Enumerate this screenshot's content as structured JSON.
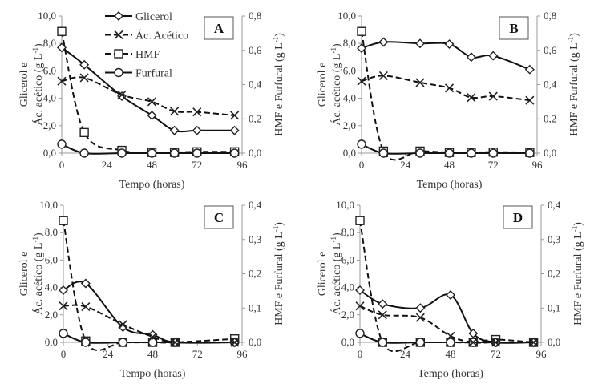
{
  "chart_data": [
    {
      "type": "line",
      "panel_label": "A",
      "xlabel": "Tempo (horas)",
      "ylabel_lines": [
        "Glicerol e",
        "Ác. acético (g L",
        "-1",
        ")"
      ],
      "y2label": [
        "HMF e Furfural (g L",
        "-1",
        ")"
      ],
      "xlim": [
        0,
        96
      ],
      "xticks": [
        "0",
        "24",
        "48",
        "72",
        "96"
      ],
      "ylim": [
        0,
        10
      ],
      "yticks": [
        "0,0",
        "2,0",
        "4,0",
        "6,0",
        "8,0",
        "10,0"
      ],
      "y2lim": [
        0,
        0.8
      ],
      "y2ticks": [
        "0,0",
        "0,2",
        "0,4",
        "0,6",
        "0,8"
      ],
      "legend": true,
      "series": [
        {
          "name": "Glicerol",
          "axis": "left",
          "marker": "diamond",
          "dash": false,
          "x": [
            0,
            12,
            32,
            48,
            60,
            72,
            92
          ],
          "y": [
            7.7,
            6.45,
            4.15,
            2.75,
            1.65,
            1.65,
            1.65
          ]
        },
        {
          "name": "Ác. Acético",
          "axis": "left",
          "marker": "x",
          "dash": true,
          "x": [
            0,
            12,
            32,
            48,
            60,
            72,
            92
          ],
          "y": [
            5.25,
            5.5,
            4.25,
            3.75,
            3.05,
            3.0,
            2.75
          ]
        },
        {
          "name": "HMF",
          "axis": "right",
          "marker": "square",
          "dash": true,
          "x": [
            0,
            12,
            32,
            48,
            60,
            72,
            92
          ],
          "y": [
            0.71,
            0.12,
            0.016,
            0.004,
            0.004,
            0.008,
            0.008
          ]
        },
        {
          "name": "Furfural",
          "axis": "right",
          "marker": "circle",
          "dash": false,
          "x": [
            0,
            12,
            32,
            48,
            60,
            72,
            92
          ],
          "y": [
            0.052,
            0,
            0,
            0,
            0,
            0,
            0
          ]
        }
      ]
    },
    {
      "type": "line",
      "panel_label": "B",
      "xlabel": "Tempo (horas)",
      "ylabel_lines": [
        "Glicerol e",
        "Ác. acético (g L",
        "-1",
        ")"
      ],
      "y2label": [
        "HMF e Furfural (g L",
        "-1",
        ")"
      ],
      "xlim": [
        0,
        96
      ],
      "xticks": [
        "0",
        "24",
        "48",
        "72",
        "96"
      ],
      "ylim": [
        0,
        10
      ],
      "yticks": [
        "0,0",
        "2,0",
        "4,0",
        "6,0",
        "8,0",
        "10,0"
      ],
      "y2lim": [
        0,
        0.8
      ],
      "y2ticks": [
        "0,0",
        "0,2",
        "0,4",
        "0,6",
        "0,8"
      ],
      "legend": false,
      "series": [
        {
          "name": "Glicerol",
          "axis": "left",
          "marker": "diamond",
          "dash": false,
          "x": [
            0,
            12,
            32,
            48,
            60,
            72,
            92
          ],
          "y": [
            7.65,
            8.1,
            8.0,
            7.95,
            7.0,
            7.1,
            6.1
          ]
        },
        {
          "name": "Ác. Acético",
          "axis": "left",
          "marker": "x",
          "dash": true,
          "x": [
            0,
            12,
            32,
            48,
            60,
            72,
            92
          ],
          "y": [
            5.25,
            5.65,
            5.15,
            4.75,
            4.05,
            4.15,
            3.85
          ]
        },
        {
          "name": "HMF",
          "axis": "right",
          "marker": "square",
          "dash": true,
          "x": [
            0,
            12,
            32,
            48,
            60,
            72,
            92
          ],
          "y": [
            0.71,
            0.012,
            0.012,
            0.004,
            0.004,
            0.006,
            0.004
          ]
        },
        {
          "name": "Furfural",
          "axis": "right",
          "marker": "circle",
          "dash": false,
          "x": [
            0,
            12,
            32,
            48,
            60,
            72,
            92
          ],
          "y": [
            0.052,
            0,
            0,
            0,
            0,
            0,
            0
          ]
        }
      ]
    },
    {
      "type": "line",
      "panel_label": "C",
      "xlabel": "Tempo (horas)",
      "ylabel_lines": [
        "Glicerol e",
        "Ác. acético (g L",
        "-1",
        ")"
      ],
      "y2label": [
        "HMF e Furfural (g L",
        "-1",
        ")"
      ],
      "xlim": [
        0,
        96
      ],
      "xticks": [
        "0",
        "24",
        "48",
        "72",
        "96"
      ],
      "ylim": [
        0,
        10
      ],
      "yticks": [
        "0,0",
        "2,0",
        "4,0",
        "6,0",
        "8,0",
        "10,0"
      ],
      "y2lim": [
        0,
        0.4
      ],
      "y2ticks": [
        "0,0",
        "0,1",
        "0,2",
        "0,3",
        "0,4"
      ],
      "legend": false,
      "series": [
        {
          "name": "Glicerol",
          "axis": "left",
          "marker": "diamond",
          "dash": false,
          "x": [
            0,
            12,
            32,
            48,
            60,
            92
          ],
          "y": [
            3.8,
            4.3,
            1.1,
            0.55,
            0,
            0
          ]
        },
        {
          "name": "Ác. Acético",
          "axis": "left",
          "marker": "x",
          "dash": true,
          "x": [
            0,
            12,
            32,
            48,
            60,
            92
          ],
          "y": [
            2.65,
            2.6,
            1.3,
            0.4,
            0,
            0
          ]
        },
        {
          "name": "HMF",
          "axis": "right",
          "marker": "square",
          "dash": true,
          "x": [
            0,
            12,
            32,
            48,
            60,
            92
          ],
          "y": [
            0.355,
            0.004,
            0,
            0,
            0,
            0.01
          ]
        },
        {
          "name": "Furfural",
          "axis": "right",
          "marker": "circle",
          "dash": false,
          "x": [
            0,
            12,
            32,
            48,
            60,
            92
          ],
          "y": [
            0.026,
            0,
            0,
            0,
            0,
            0
          ]
        }
      ]
    },
    {
      "type": "line",
      "panel_label": "D",
      "xlabel": "Tempo (horas)",
      "ylabel_lines": [
        "Glicerol e",
        "Ác. acético (g L",
        "-1",
        ")"
      ],
      "y2label": [
        "HMF e Furfural (g L",
        "-1",
        ")"
      ],
      "xlim": [
        0,
        96
      ],
      "xticks": [
        "0",
        "24",
        "48",
        "72",
        "96"
      ],
      "ylim": [
        0,
        10
      ],
      "yticks": [
        "0,0",
        "2,0",
        "4,0",
        "6,0",
        "8,0",
        "10,0"
      ],
      "y2lim": [
        0,
        0.4
      ],
      "y2ticks": [
        "0,0",
        "0,1",
        "0,2",
        "0,3",
        "0,4"
      ],
      "legend": false,
      "series": [
        {
          "name": "Glicerol",
          "axis": "left",
          "marker": "diamond",
          "dash": false,
          "x": [
            0,
            12,
            32,
            48,
            60,
            72,
            92
          ],
          "y": [
            3.8,
            2.8,
            2.5,
            3.45,
            0.65,
            0,
            0
          ]
        },
        {
          "name": "Ác. Acético",
          "axis": "left",
          "marker": "x",
          "dash": true,
          "x": [
            0,
            12,
            32,
            48,
            60,
            72,
            92
          ],
          "y": [
            2.65,
            2.0,
            1.8,
            0.45,
            0,
            0,
            0
          ]
        },
        {
          "name": "HMF",
          "axis": "right",
          "marker": "square",
          "dash": true,
          "x": [
            0,
            12,
            32,
            48,
            60,
            72,
            92
          ],
          "y": [
            0.355,
            0,
            0,
            0,
            0,
            0.008,
            0
          ]
        },
        {
          "name": "Furfural",
          "axis": "right",
          "marker": "circle",
          "dash": false,
          "x": [
            0,
            12,
            32,
            48,
            60,
            72,
            92
          ],
          "y": [
            0.026,
            0,
            0,
            0,
            0,
            0,
            0
          ]
        }
      ]
    }
  ]
}
